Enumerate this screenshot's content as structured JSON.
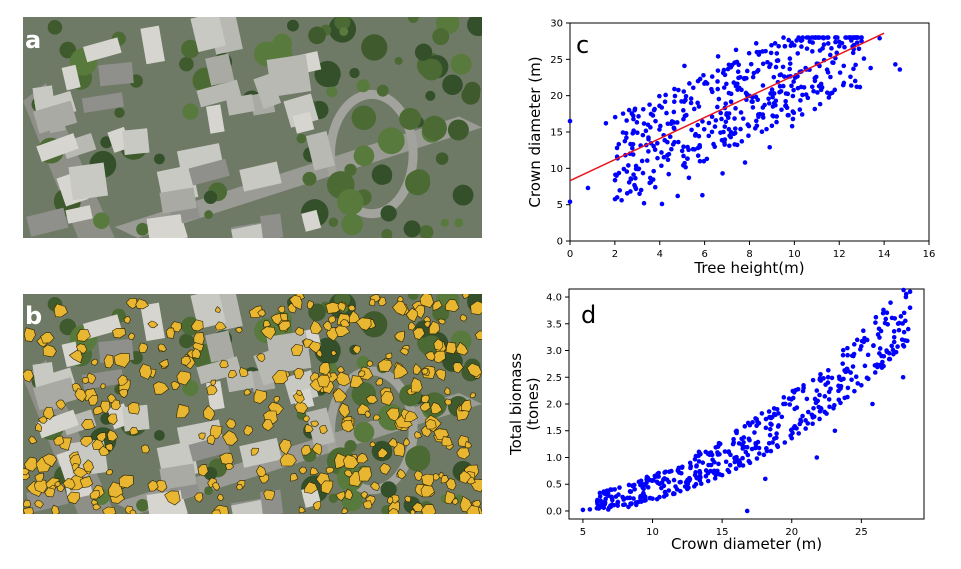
{
  "panels": {
    "a": "a",
    "b": "b",
    "c": "c",
    "d": "d"
  },
  "colors": {
    "points": "#0000ff",
    "fit_line": "#e8161c",
    "crown_fill": "#e8b630",
    "crown_outline": "#2a2200"
  },
  "chart_data": [
    {
      "id": "c",
      "type": "scatter",
      "xlabel": "Tree height(m)",
      "ylabel": "Crown diameter (m)",
      "xlim": [
        0,
        16
      ],
      "ylim": [
        0,
        30
      ],
      "xticks": [
        0,
        2,
        4,
        6,
        8,
        10,
        12,
        14,
        16
      ],
      "yticks": [
        0,
        5,
        10,
        15,
        20,
        25,
        30
      ],
      "grid": false,
      "regression_line": {
        "x": [
          0,
          14
        ],
        "y": [
          8.3,
          28.6
        ]
      },
      "points": [
        [
          0,
          16.5
        ],
        [
          0,
          5.4
        ],
        [
          0.8,
          7.3
        ],
        [
          1.6,
          16.2
        ],
        [
          2.1,
          11.6
        ],
        [
          2.3,
          5.6
        ],
        [
          2.4,
          9.9
        ],
        [
          2.6,
          10.4
        ],
        [
          2.9,
          18.2
        ],
        [
          3.0,
          14.9
        ],
        [
          3.1,
          6.5
        ],
        [
          3.3,
          5.2
        ],
        [
          3.4,
          13.2
        ],
        [
          3.6,
          8.1
        ],
        [
          3.8,
          7.4
        ],
        [
          3.9,
          11.4
        ],
        [
          4.1,
          5.1
        ],
        [
          4.3,
          17.6
        ],
        [
          4.4,
          9.2
        ],
        [
          4.6,
          13.3
        ],
        [
          4.8,
          6.2
        ],
        [
          5.0,
          12.4
        ],
        [
          5.1,
          24.1
        ],
        [
          5.3,
          8.7
        ],
        [
          5.4,
          19.6
        ],
        [
          5.6,
          14.7
        ],
        [
          5.8,
          22.3
        ],
        [
          5.9,
          6.3
        ],
        [
          6.1,
          11.3
        ],
        [
          6.3,
          20.9
        ],
        [
          6.5,
          16.6
        ],
        [
          6.6,
          25.4
        ],
        [
          6.8,
          9.3
        ],
        [
          6.9,
          18.3
        ],
        [
          7.1,
          13.1
        ],
        [
          7.3,
          21.8
        ],
        [
          7.4,
          26.3
        ],
        [
          7.6,
          15.4
        ],
        [
          7.8,
          10.8
        ],
        [
          7.9,
          23.4
        ],
        [
          8.1,
          19.2
        ],
        [
          8.3,
          27.2
        ],
        [
          8.4,
          17.1
        ],
        [
          8.6,
          21.4
        ],
        [
          8.8,
          24.6
        ],
        [
          8.9,
          12.9
        ],
        [
          9.1,
          20.3
        ],
        [
          9.3,
          26.8
        ],
        [
          9.4,
          22.9
        ],
        [
          9.6,
          18.6
        ],
        [
          9.8,
          25.1
        ],
        [
          9.9,
          15.8
        ],
        [
          10.1,
          27.6
        ],
        [
          10.3,
          21.2
        ],
        [
          10.5,
          23.8
        ],
        [
          10.6,
          19.7
        ],
        [
          10.8,
          26.1
        ],
        [
          11.0,
          24.4
        ],
        [
          11.1,
          21.3
        ],
        [
          11.3,
          27.9
        ],
        [
          11.5,
          23.2
        ],
        [
          11.6,
          25.6
        ],
        [
          11.8,
          20.8
        ],
        [
          12.0,
          26.8
        ],
        [
          12.2,
          24.1
        ],
        [
          12.5,
          22.6
        ],
        [
          12.8,
          27.3
        ],
        [
          13.1,
          25.1
        ],
        [
          13.4,
          23.8
        ],
        [
          13.8,
          27.9
        ],
        [
          14.5,
          24.3
        ],
        [
          14.7,
          23.6
        ]
      ]
    },
    {
      "id": "d",
      "type": "scatter",
      "xlabel": "Crown diameter (m)",
      "ylabel": "Total biomass (tones)",
      "xlim": [
        4,
        29.5
      ],
      "ylim": [
        -0.15,
        4.15
      ],
      "xticks": [
        5,
        10,
        15,
        20,
        25
      ],
      "yticks": [
        0.0,
        0.5,
        1.0,
        1.5,
        2.0,
        2.5,
        3.0,
        3.5,
        4.0
      ],
      "grid": false,
      "points": [
        [
          5.0,
          0.02
        ],
        [
          5.5,
          0.03
        ],
        [
          6.0,
          0.05
        ],
        [
          6.5,
          0.06
        ],
        [
          7.0,
          0.08
        ],
        [
          7.5,
          0.1
        ],
        [
          8.0,
          0.12
        ],
        [
          8.5,
          0.14
        ],
        [
          9.0,
          0.17
        ],
        [
          9.5,
          0.2
        ],
        [
          10.0,
          0.23
        ],
        [
          10.5,
          0.26
        ],
        [
          11.0,
          0.3
        ],
        [
          11.5,
          0.33
        ],
        [
          12.0,
          0.37
        ],
        [
          12.5,
          0.41
        ],
        [
          13.0,
          0.46
        ],
        [
          13.5,
          0.51
        ],
        [
          14.0,
          0.56
        ],
        [
          14.5,
          0.61
        ],
        [
          15.0,
          0.67
        ],
        [
          15.5,
          0.73
        ],
        [
          16.0,
          0.79
        ],
        [
          16.5,
          0.85
        ],
        [
          17.0,
          0.9
        ],
        [
          17.5,
          0.98
        ],
        [
          18.0,
          1.05
        ],
        [
          18.5,
          1.12
        ],
        [
          19.0,
          1.2
        ],
        [
          19.5,
          1.28
        ],
        [
          20.0,
          1.36
        ],
        [
          20.5,
          1.45
        ],
        [
          21.0,
          1.54
        ],
        [
          21.5,
          1.63
        ],
        [
          22.0,
          1.72
        ],
        [
          22.5,
          1.82
        ],
        [
          23.0,
          1.92
        ],
        [
          23.5,
          2.02
        ],
        [
          24.0,
          2.13
        ],
        [
          24.5,
          2.24
        ],
        [
          25.0,
          2.35
        ],
        [
          25.5,
          2.47
        ],
        [
          26.0,
          2.59
        ],
        [
          26.5,
          2.71
        ],
        [
          27.0,
          2.84
        ],
        [
          27.5,
          2.97
        ],
        [
          28.0,
          3.1
        ],
        [
          28.3,
          3.18
        ],
        [
          16.8,
          0.0
        ],
        [
          15.6,
          1.05
        ],
        [
          19.4,
          2.0
        ],
        [
          22.6,
          2.4
        ],
        [
          24.4,
          2.7
        ],
        [
          26.2,
          3.3
        ],
        [
          27.4,
          3.6
        ],
        [
          28.0,
          2.5
        ],
        [
          25.8,
          2.0
        ],
        [
          21.8,
          1.0
        ],
        [
          28.2,
          4.0
        ],
        [
          28.5,
          3.8
        ],
        [
          23.1,
          1.5
        ],
        [
          18.1,
          0.6
        ]
      ]
    }
  ]
}
